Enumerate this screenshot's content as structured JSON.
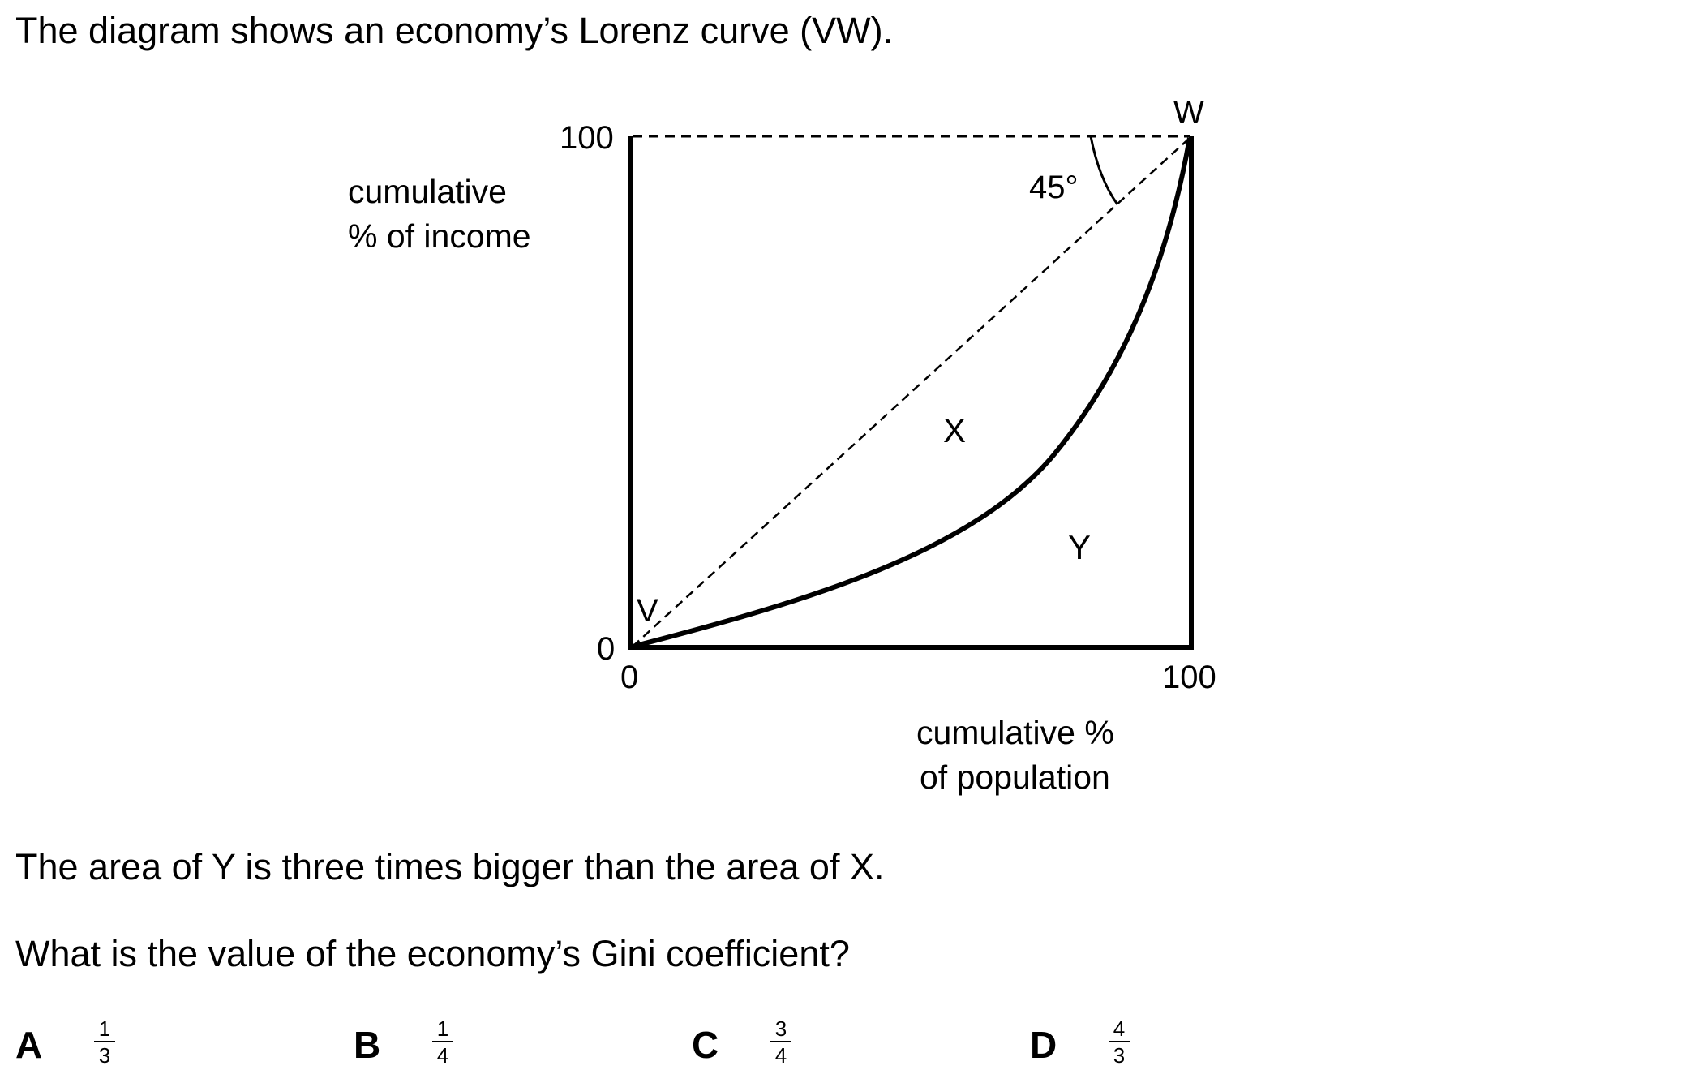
{
  "intro": "The diagram shows an economy’s Lorenz curve (VW).",
  "diagram": {
    "y_axis_label_line1": "cumulative",
    "y_axis_label_line2": "% of income",
    "x_axis_label_line1": "cumulative %",
    "x_axis_label_line2": "of population",
    "y_tick_top": "100",
    "y_tick_bottom": "0",
    "x_tick_left": "0",
    "x_tick_right": "100",
    "point_v": "V",
    "point_w": "W",
    "angle_label": "45°",
    "region_x": "X",
    "region_y": "Y"
  },
  "statement": "The area of Y is three times bigger than the area of X.",
  "question": "What is the value of the economy’s Gini coefficient?",
  "options": [
    {
      "letter": "A",
      "numerator": "1",
      "denominator": "3"
    },
    {
      "letter": "B",
      "numerator": "1",
      "denominator": "4"
    },
    {
      "letter": "C",
      "numerator": "3",
      "denominator": "4"
    },
    {
      "letter": "D",
      "numerator": "4",
      "denominator": "3"
    }
  ]
}
